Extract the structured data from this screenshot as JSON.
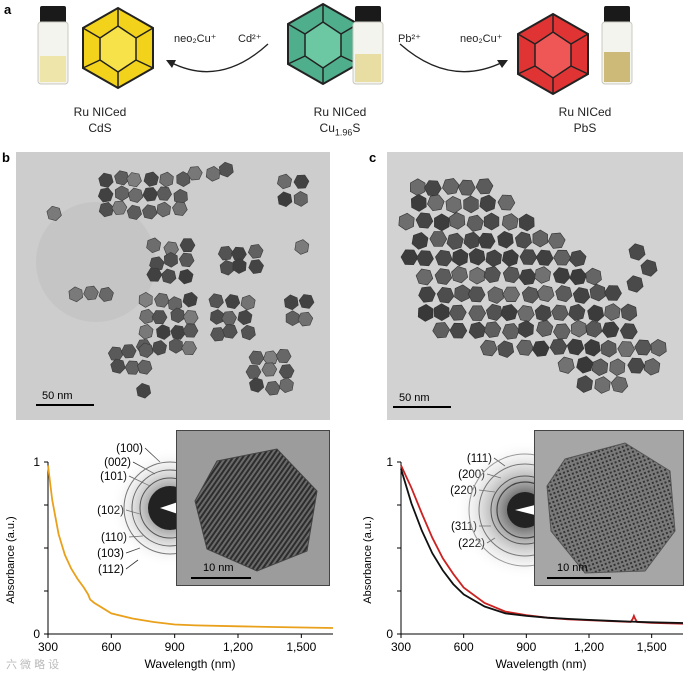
{
  "panel_labels": {
    "a": "a",
    "b": "b",
    "c": "c"
  },
  "reaction": {
    "left": {
      "line1": "Ru NICed",
      "line2": "CdS"
    },
    "center": {
      "line1": "Ru NICed",
      "line2_main": "Cu",
      "line2_sub": "1.96",
      "line2_end": "S"
    },
    "right": {
      "line1": "Ru NICed",
      "line2": "PbS"
    },
    "left_arrow_product": "neo₂Cu⁺",
    "left_arrow_reagent": "Cd²⁺",
    "right_arrow_reagent": "Pb²⁺",
    "right_arrow_product": "neo₂Cu⁺"
  },
  "colors": {
    "cds": "#f2d21a",
    "cu2s": "#4fae8c",
    "pbs": "#e03434",
    "curve_cds": "#e9a01b",
    "curve_red": "#cc2222",
    "curve_black": "#111111"
  },
  "tem_b": {
    "scale": "50 nm"
  },
  "tem_c": {
    "scale": "50 nm"
  },
  "hrtem_b": {
    "scale": "10 nm"
  },
  "hrtem_c": {
    "scale": "10 nm"
  },
  "chart_data": [
    {
      "type": "line",
      "panel": "b",
      "ylabel": "Absorbance (a.u.)",
      "xlabel": "Wavelength (nm)",
      "xlim": [
        300,
        1650
      ],
      "ylim": [
        0,
        1
      ],
      "x_ticks": [
        "300",
        "600",
        "900",
        "1,200",
        "1,500"
      ],
      "y_ticks": [
        "0",
        "1"
      ],
      "diffraction_rings": [
        "(100)",
        "(002)",
        "(101)",
        "(102)",
        "(110)",
        "(103)",
        "(112)"
      ],
      "series": [
        {
          "name": "CdS",
          "color": "#e9a01b",
          "x": [
            300,
            320,
            350,
            380,
            410,
            440,
            470,
            490,
            500,
            520,
            560,
            600,
            700,
            800,
            900,
            1000,
            1200,
            1400,
            1650
          ],
          "y": [
            0.98,
            0.78,
            0.58,
            0.46,
            0.38,
            0.32,
            0.27,
            0.23,
            0.2,
            0.18,
            0.15,
            0.12,
            0.09,
            0.07,
            0.055,
            0.05,
            0.045,
            0.04,
            0.035
          ]
        }
      ]
    },
    {
      "type": "line",
      "panel": "c",
      "ylabel": "Absorbance (a.u.)",
      "xlabel": "Wavelength (nm)",
      "xlim": [
        300,
        1650
      ],
      "ylim": [
        0,
        1
      ],
      "x_ticks": [
        "300",
        "600",
        "900",
        "1,200",
        "1,500"
      ],
      "y_ticks": [
        "0",
        "1"
      ],
      "diffraction_rings": [
        "(111)",
        "(200)",
        "(220)",
        "(311)",
        "(222)"
      ],
      "series": [
        {
          "name": "red",
          "color": "#cc2222",
          "x": [
            300,
            350,
            400,
            450,
            500,
            550,
            600,
            700,
            800,
            900,
            1000,
            1100,
            1200,
            1300,
            1400,
            1410,
            1415,
            1420,
            1430,
            1500,
            1650
          ],
          "y": [
            0.98,
            0.85,
            0.7,
            0.56,
            0.44,
            0.35,
            0.27,
            0.18,
            0.13,
            0.11,
            0.095,
            0.085,
            0.08,
            0.075,
            0.07,
            0.09,
            0.105,
            0.09,
            0.07,
            0.065,
            0.06
          ]
        },
        {
          "name": "black",
          "color": "#111111",
          "x": [
            300,
            350,
            400,
            450,
            500,
            550,
            600,
            700,
            800,
            900,
            1000,
            1100,
            1200,
            1300,
            1400,
            1500,
            1650
          ],
          "y": [
            0.96,
            0.76,
            0.6,
            0.47,
            0.37,
            0.29,
            0.23,
            0.16,
            0.12,
            0.105,
            0.095,
            0.088,
            0.082,
            0.077,
            0.072,
            0.068,
            0.064
          ]
        }
      ]
    }
  ],
  "watermark": "六 微 略 设"
}
